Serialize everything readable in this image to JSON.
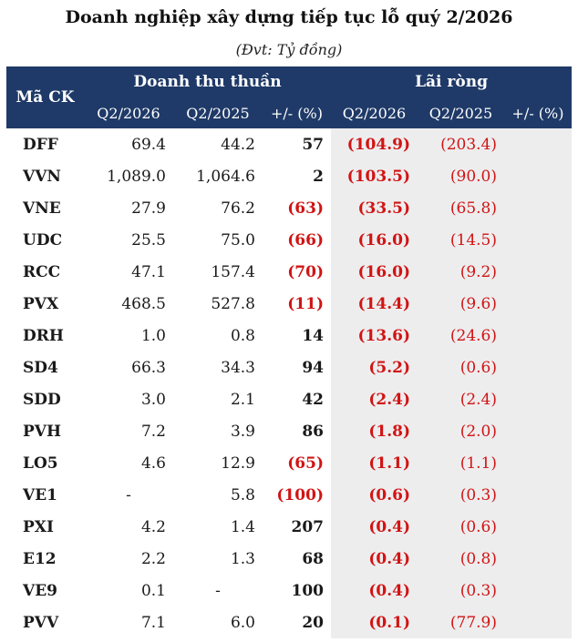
{
  "title": "Doanh nghiệp xây dựng tiếp tục lỗ quý 2/2026",
  "unit": "(Đvt: Tỷ đồng)",
  "header": {
    "code_label": "Mã CK",
    "group1": "Doanh thu thuần",
    "group2": "Lãi ròng",
    "sub": [
      "Q2/2026",
      "Q2/2025",
      "+/- (%)",
      "Q2/2026",
      "Q2/2025",
      "+/- (%)"
    ]
  },
  "colors": {
    "header_bg": "#1f3a68",
    "negative": "#d11414",
    "shade": "#ededee"
  },
  "rows": [
    {
      "code": "DFF",
      "rev26": "69.4",
      "rev25": "44.2",
      "rev_pct": "57",
      "rev_pct_neg": false,
      "np26": "(104.9)",
      "np25": "(203.4)",
      "np_pct": ""
    },
    {
      "code": "VVN",
      "rev26": "1,089.0",
      "rev25": "1,064.6",
      "rev_pct": "2",
      "rev_pct_neg": false,
      "np26": "(103.5)",
      "np25": "(90.0)",
      "np_pct": ""
    },
    {
      "code": "VNE",
      "rev26": "27.9",
      "rev25": "76.2",
      "rev_pct": "(63)",
      "rev_pct_neg": true,
      "np26": "(33.5)",
      "np25": "(65.8)",
      "np_pct": ""
    },
    {
      "code": "UDC",
      "rev26": "25.5",
      "rev25": "75.0",
      "rev_pct": "(66)",
      "rev_pct_neg": true,
      "np26": "(16.0)",
      "np25": "(14.5)",
      "np_pct": ""
    },
    {
      "code": "RCC",
      "rev26": "47.1",
      "rev25": "157.4",
      "rev_pct": "(70)",
      "rev_pct_neg": true,
      "np26": "(16.0)",
      "np25": "(9.2)",
      "np_pct": ""
    },
    {
      "code": "PVX",
      "rev26": "468.5",
      "rev25": "527.8",
      "rev_pct": "(11)",
      "rev_pct_neg": true,
      "np26": "(14.4)",
      "np25": "(9.6)",
      "np_pct": ""
    },
    {
      "code": "DRH",
      "rev26": "1.0",
      "rev25": "0.8",
      "rev_pct": "14",
      "rev_pct_neg": false,
      "np26": "(13.6)",
      "np25": "(24.6)",
      "np_pct": ""
    },
    {
      "code": "SD4",
      "rev26": "66.3",
      "rev25": "34.3",
      "rev_pct": "94",
      "rev_pct_neg": false,
      "np26": "(5.2)",
      "np25": "(0.6)",
      "np_pct": ""
    },
    {
      "code": "SDD",
      "rev26": "3.0",
      "rev25": "2.1",
      "rev_pct": "42",
      "rev_pct_neg": false,
      "np26": "(2.4)",
      "np25": "(2.4)",
      "np_pct": ""
    },
    {
      "code": "PVH",
      "rev26": "7.2",
      "rev25": "3.9",
      "rev_pct": "86",
      "rev_pct_neg": false,
      "np26": "(1.8)",
      "np25": "(2.0)",
      "np_pct": ""
    },
    {
      "code": "LO5",
      "rev26": "4.6",
      "rev25": "12.9",
      "rev_pct": "(65)",
      "rev_pct_neg": true,
      "np26": "(1.1)",
      "np25": "(1.1)",
      "np_pct": ""
    },
    {
      "code": "VE1",
      "rev26": "-",
      "rev25": "5.8",
      "rev_pct": "(100)",
      "rev_pct_neg": true,
      "np26": "(0.6)",
      "np25": "(0.3)",
      "np_pct": ""
    },
    {
      "code": "PXI",
      "rev26": "4.2",
      "rev25": "1.4",
      "rev_pct": "207",
      "rev_pct_neg": false,
      "np26": "(0.4)",
      "np25": "(0.6)",
      "np_pct": ""
    },
    {
      "code": "E12",
      "rev26": "2.2",
      "rev25": "1.3",
      "rev_pct": "68",
      "rev_pct_neg": false,
      "np26": "(0.4)",
      "np25": "(0.8)",
      "np_pct": ""
    },
    {
      "code": "VE9",
      "rev26": "0.1",
      "rev25": "-",
      "rev_pct": "100",
      "rev_pct_neg": false,
      "np26": "(0.4)",
      "np25": "(0.3)",
      "np_pct": ""
    },
    {
      "code": "PVV",
      "rev26": "7.1",
      "rev25": "6.0",
      "rev_pct": "20",
      "rev_pct_neg": false,
      "np26": "(0.1)",
      "np25": "(77.9)",
      "np_pct": ""
    }
  ]
}
